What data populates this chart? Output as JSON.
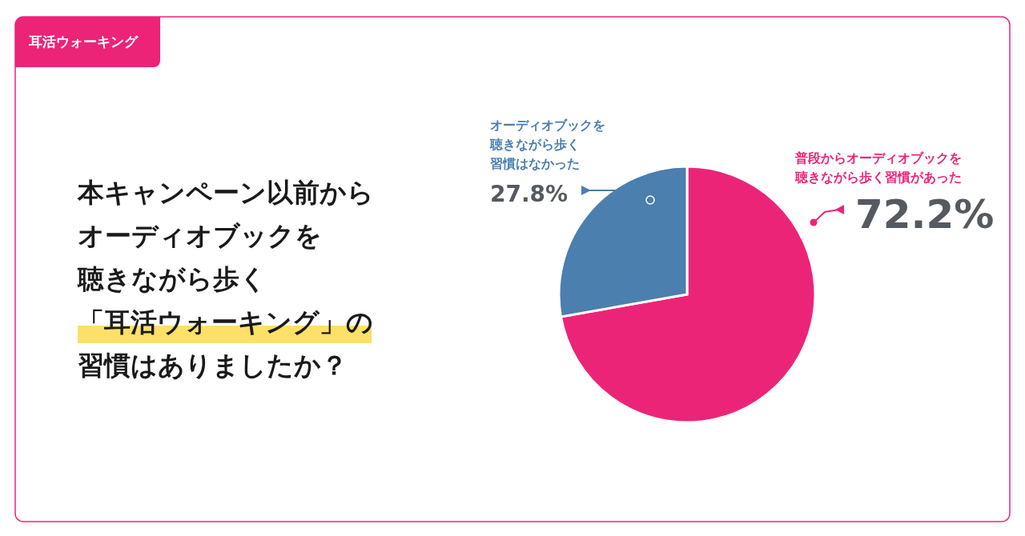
{
  "chart_data": {
    "type": "pie",
    "subtitle": "耳活ウォーキング",
    "title": "本キャンペーン以前からオーディオブックを聴きながら歩く「耳活ウォーキング」の習慣はありましたか？",
    "categories": [
      "普段からオーディオブックを聴きながら歩く習慣があった",
      "オーディオブックを聴きながら歩く習慣はなかった"
    ],
    "values": [
      72.2,
      27.8
    ],
    "colors": [
      "#ec2478",
      "#4b7fae"
    ],
    "value_labels": [
      "72.2%",
      "27.8%"
    ]
  }
}
